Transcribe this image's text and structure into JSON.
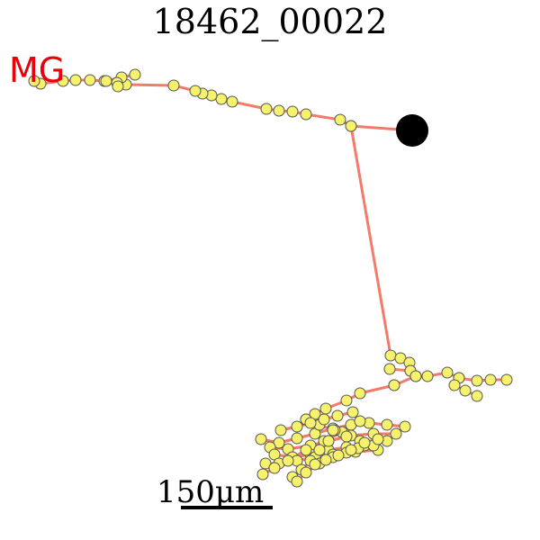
{
  "title": "18462_00022",
  "region_label": {
    "text": "MG",
    "color": "#e8000b"
  },
  "scalebar": {
    "label": "150μm"
  },
  "colors": {
    "branch": "#f47a6a",
    "node_fill": "#f6f26c",
    "node_stroke": "#555555",
    "soma": "#000000"
  },
  "icons": {
    "soma": "filled-circle"
  }
}
